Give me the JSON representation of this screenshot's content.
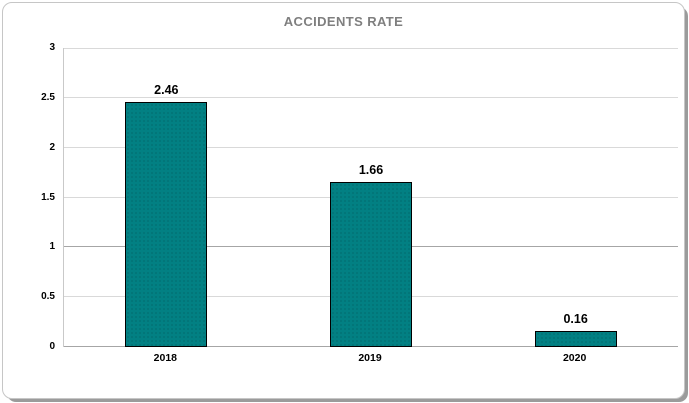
{
  "window": {
    "background_color": "#ffffff",
    "frame_border_color": "#c6c6c6",
    "frame_shadow_color": "#9b9b9b"
  },
  "chart_data": {
    "type": "bar",
    "title": "ACCIDENTS RATE",
    "categories": [
      "2018",
      "2019",
      "2020"
    ],
    "values": [
      2.46,
      1.66,
      0.16
    ],
    "data_labels": [
      "2.46",
      "1.66",
      "0.16"
    ],
    "xlabel": "",
    "ylabel": "",
    "ylim": [
      0,
      3
    ],
    "ytick_step": 0.5,
    "yticks": [
      "0",
      "0.5",
      "1",
      "1.5",
      "2",
      "2.5",
      "3"
    ],
    "grid": "horizontal",
    "legend_position": "none",
    "bar_color": "#028083",
    "bar_border_color": "#000000",
    "title_color": "#7f7f7f",
    "gridline_color": "#d9d9d9",
    "emphasis_gridline_value": 1,
    "emphasis_gridline_color": "#a6a6a6",
    "baseline_color": "#a6a6a6"
  }
}
